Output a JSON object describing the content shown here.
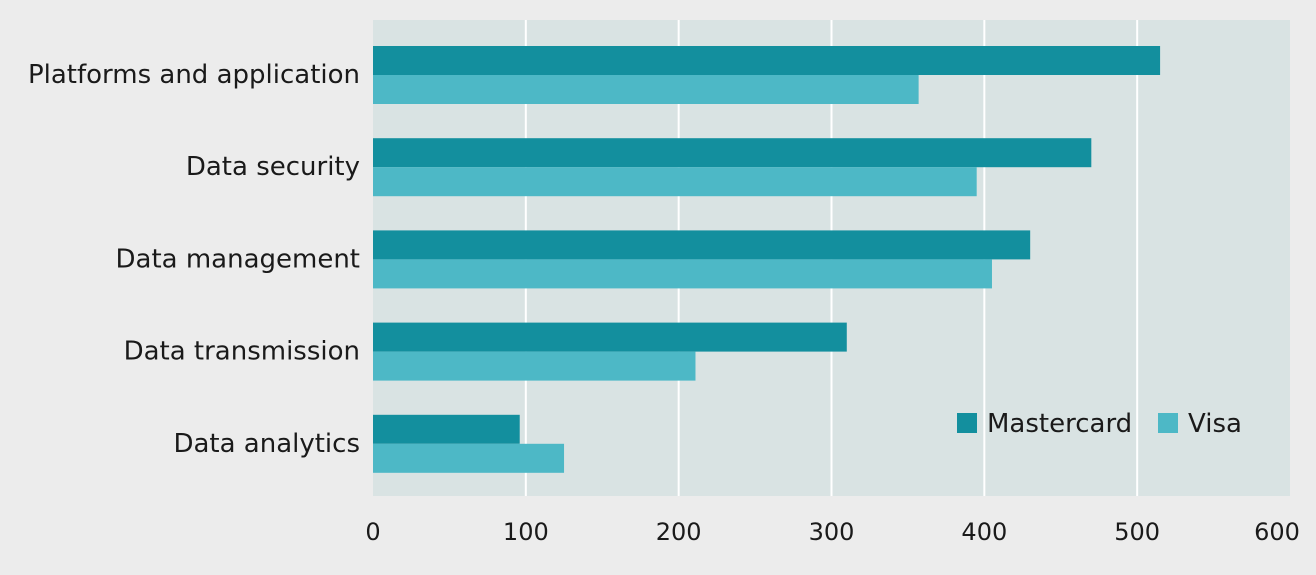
{
  "chart_data": {
    "type": "bar",
    "orientation": "horizontal",
    "title": "",
    "xlabel": "",
    "ylabel": "",
    "categories": [
      "Platforms and application",
      "Data security",
      "Data management",
      "Data transmission",
      "Data analytics"
    ],
    "series": [
      {
        "name": "Mastercard",
        "color": "#138f9e",
        "values": [
          515,
          470,
          430,
          310,
          96
        ]
      },
      {
        "name": "Visa",
        "color": "#4db8c6",
        "values": [
          357,
          395,
          405,
          211,
          125
        ]
      }
    ],
    "xlim": [
      0,
      600
    ],
    "xticks": [
      0,
      100,
      200,
      300,
      400,
      500,
      600
    ],
    "xtick_labels": [
      "0",
      "100",
      "200",
      "300",
      "400",
      "500",
      "600"
    ],
    "grid": "vertical",
    "legend_position": "bottom-right",
    "colors": {
      "plot_background": "#d9e3e3",
      "page_background": "#ececec",
      "gridline": "#ffffff"
    }
  }
}
